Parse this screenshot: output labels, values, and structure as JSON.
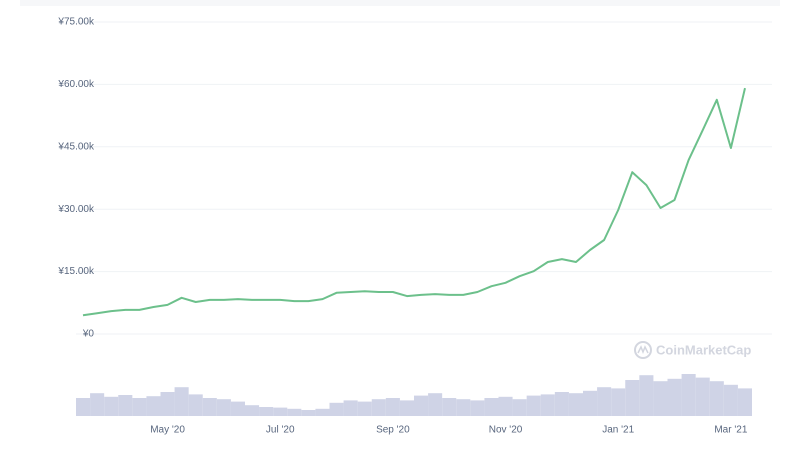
{
  "chart_data": {
    "type": "line",
    "categories": [
      null,
      null,
      null,
      null,
      null,
      null,
      "May '20",
      null,
      null,
      null,
      null,
      null,
      null,
      null,
      "Jul '20",
      null,
      null,
      null,
      null,
      null,
      null,
      null,
      "Sep '20",
      null,
      null,
      null,
      null,
      null,
      null,
      null,
      "Nov '20",
      null,
      null,
      null,
      null,
      null,
      null,
      null,
      "Jan '21",
      null,
      null,
      null,
      null,
      null,
      null,
      null,
      "Mar '21",
      null
    ],
    "series": [
      {
        "color": "#6cc08b",
        "values": [
          4500,
          5000,
          5500,
          5800,
          5800,
          6500,
          7000,
          8700,
          7700,
          8200,
          8200,
          8400,
          8200,
          8200,
          8200,
          7900,
          7900,
          8400,
          9900,
          10100,
          10300,
          10100,
          10100,
          9100,
          9400,
          9600,
          9400,
          9400,
          10100,
          11500,
          12300,
          13900,
          15100,
          17300,
          18000,
          17300,
          20200,
          22600,
          29800,
          38900,
          35800,
          30300,
          32200,
          41800,
          49000,
          56300,
          44700,
          59100
        ]
      },
      {
        "type": "bar",
        "axis": "y2",
        "color": "#cfd3e6",
        "values": [
          30,
          38,
          32,
          35,
          30,
          33,
          40,
          48,
          36,
          30,
          28,
          24,
          18,
          15,
          14,
          12,
          10,
          12,
          22,
          26,
          24,
          28,
          30,
          26,
          34,
          38,
          30,
          28,
          26,
          30,
          32,
          28,
          34,
          36,
          40,
          38,
          42,
          48,
          46,
          60,
          68,
          58,
          62,
          70,
          64,
          58,
          52,
          46
        ]
      }
    ],
    "ylim": [
      0,
      75000
    ],
    "yticks": [
      {
        "value": 0,
        "label": "¥0"
      },
      {
        "value": 15000,
        "label": "¥15.00k"
      },
      {
        "value": 30000,
        "label": "¥30.00k"
      },
      {
        "value": 45000,
        "label": "¥45.00k"
      },
      {
        "value": 60000,
        "label": "¥60.00k"
      },
      {
        "value": 75000,
        "label": "¥75.00k"
      }
    ],
    "y2lim": [
      0,
      100
    ],
    "grid": true,
    "watermark": "CoinMarketCap"
  }
}
